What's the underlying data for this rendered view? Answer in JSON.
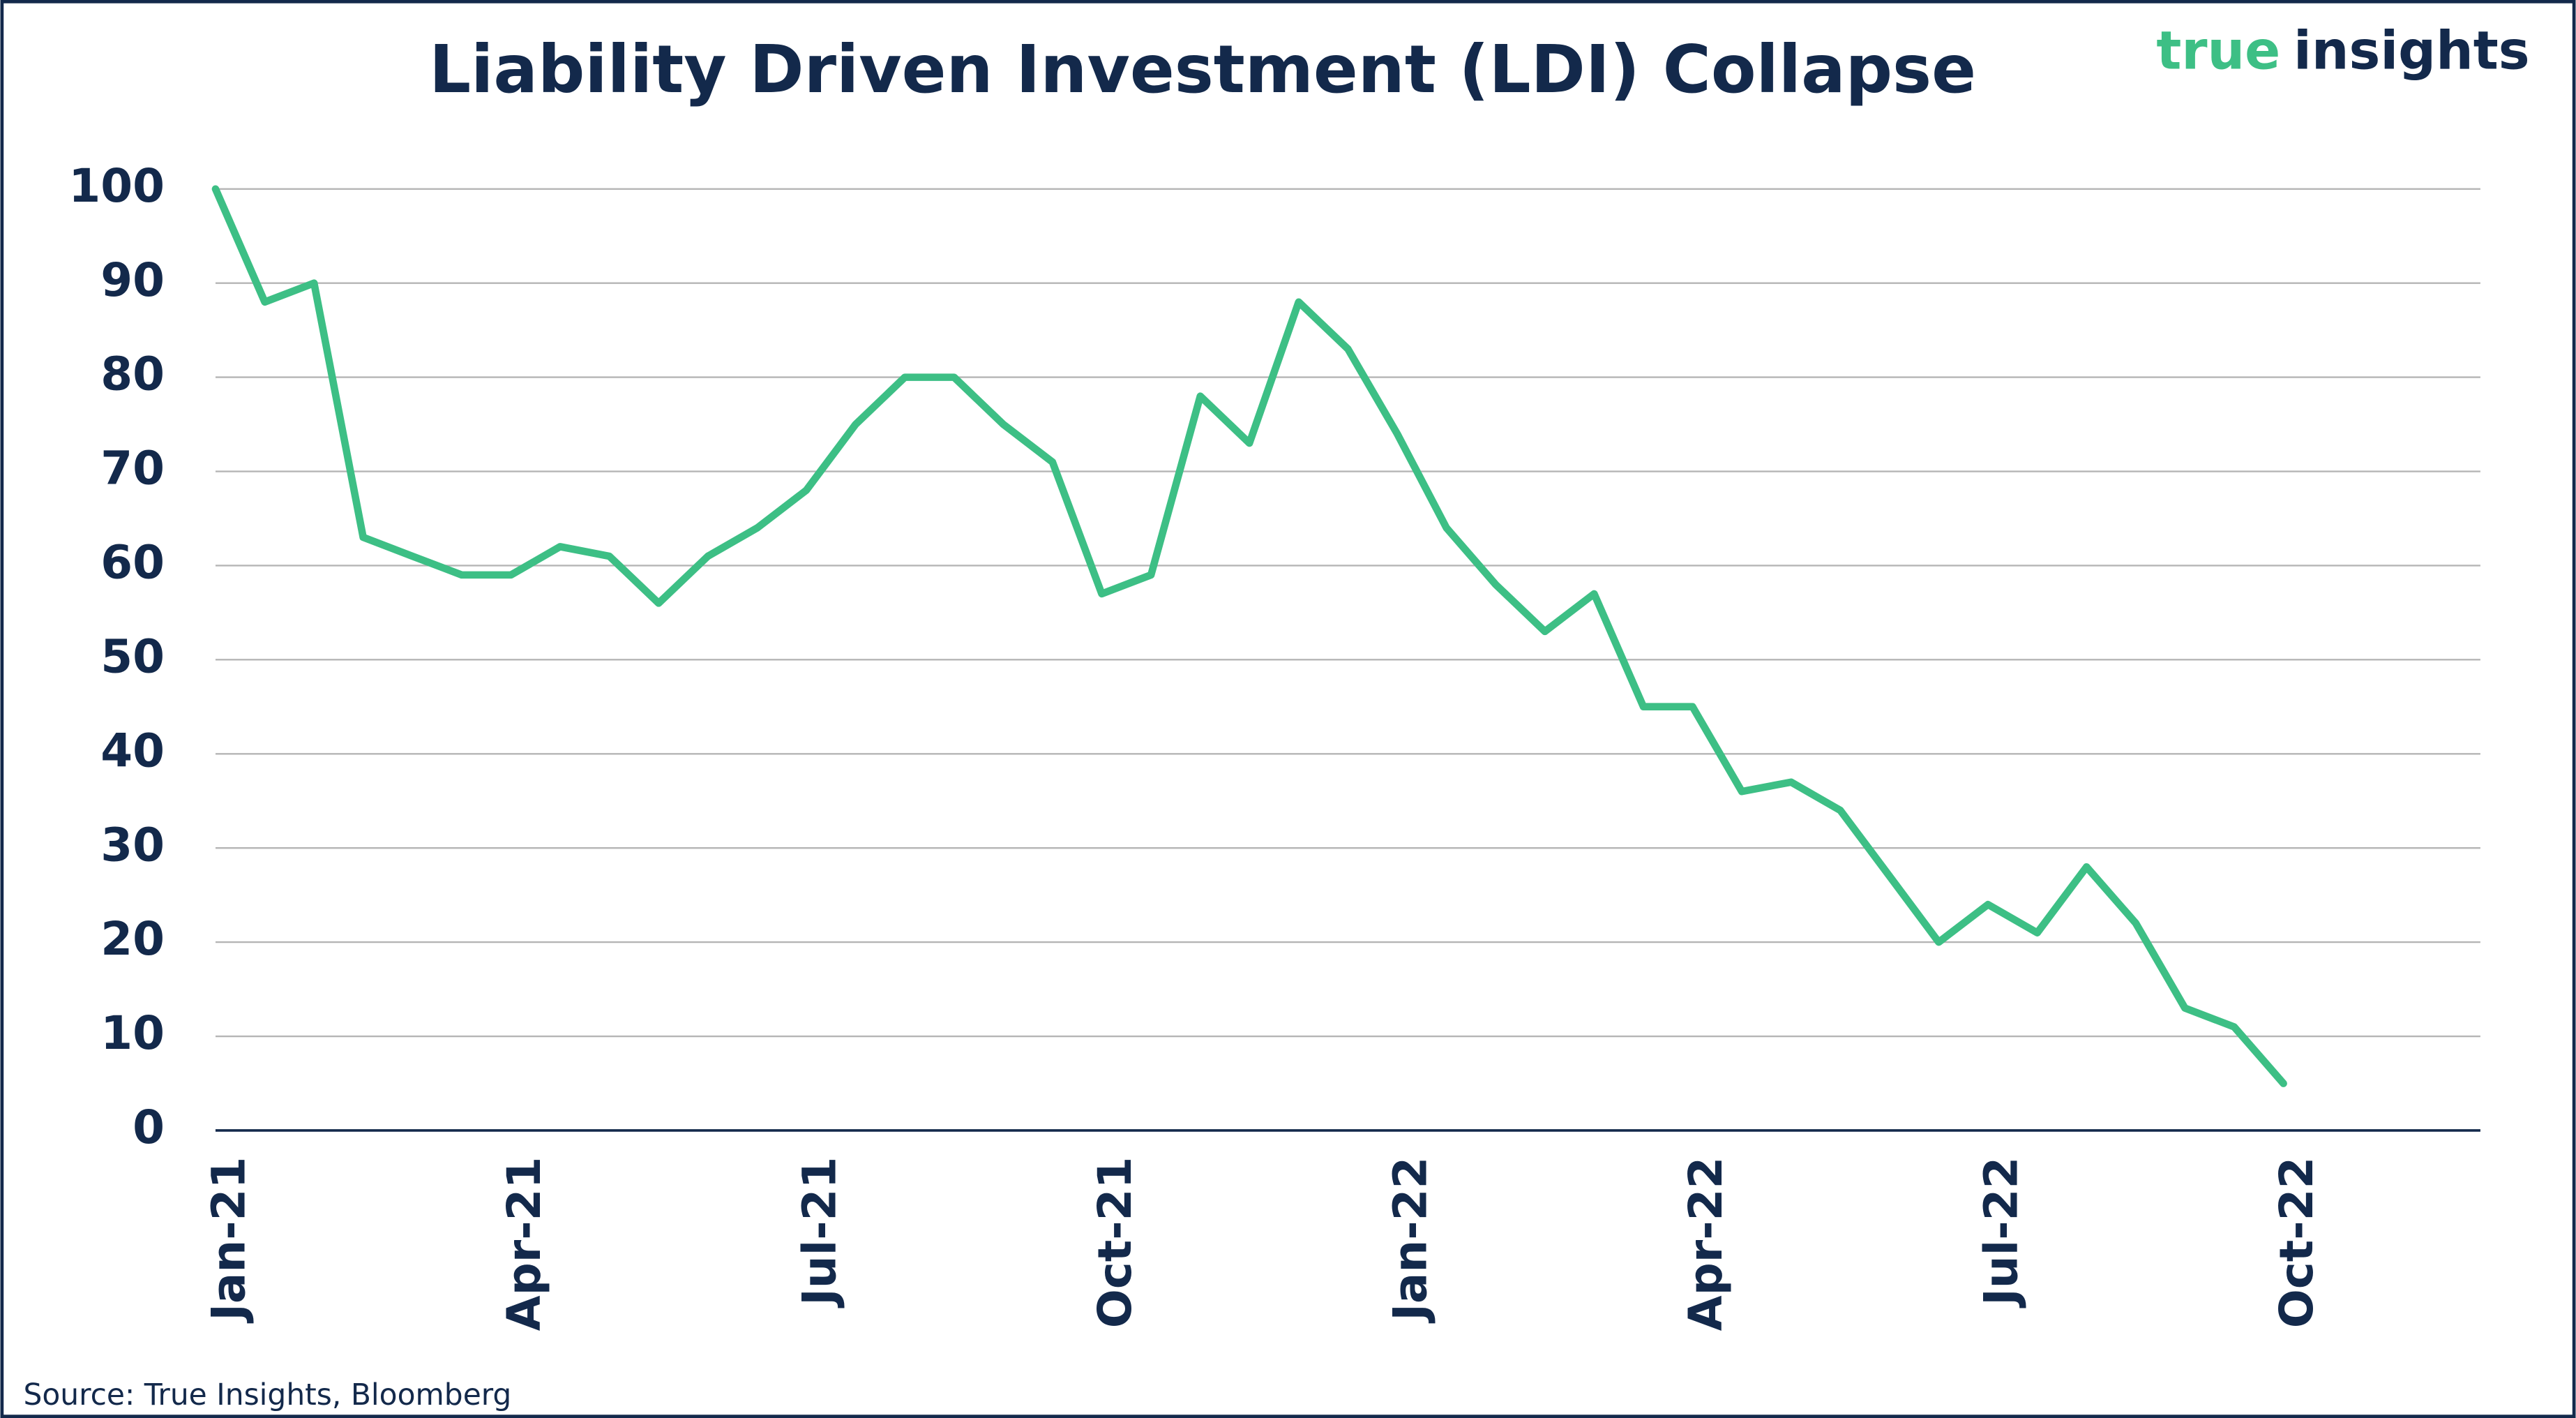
{
  "chart_data": {
    "type": "line",
    "title": "Liability Driven Investment (LDI) Collapse",
    "source": "Source: True Insights, Bloomberg",
    "categories": [
      "Jan-21",
      null,
      null,
      null,
      null,
      null,
      "Apr-21",
      null,
      null,
      null,
      null,
      null,
      "Jul-21",
      null,
      null,
      null,
      null,
      null,
      "Oct-21",
      null,
      null,
      null,
      null,
      null,
      "Jan-22",
      null,
      null,
      null,
      null,
      null,
      "Apr-22",
      null,
      null,
      null,
      null,
      null,
      "Jul-22",
      null,
      null,
      null,
      null,
      null,
      "Oct-22",
      null,
      null,
      null,
      null
    ],
    "series": [
      {
        "color": "#3dbf85",
        "values": [
          100,
          88,
          90,
          63,
          61,
          59,
          59,
          62,
          61,
          56,
          61,
          64,
          68,
          75,
          80,
          80,
          75,
          71,
          57,
          59,
          78,
          73,
          88,
          83,
          74,
          64,
          58,
          53,
          57,
          45,
          45,
          36,
          37,
          34,
          27,
          20,
          24,
          21,
          28,
          22,
          13,
          11,
          5,
          null,
          null,
          null,
          null
        ]
      }
    ],
    "ylim": [
      0,
      100
    ],
    "yticks": [
      0,
      10,
      20,
      30,
      40,
      50,
      60,
      70,
      80,
      90,
      100
    ],
    "grid": true
  },
  "logo": {
    "first": "true",
    "second": "insights"
  }
}
